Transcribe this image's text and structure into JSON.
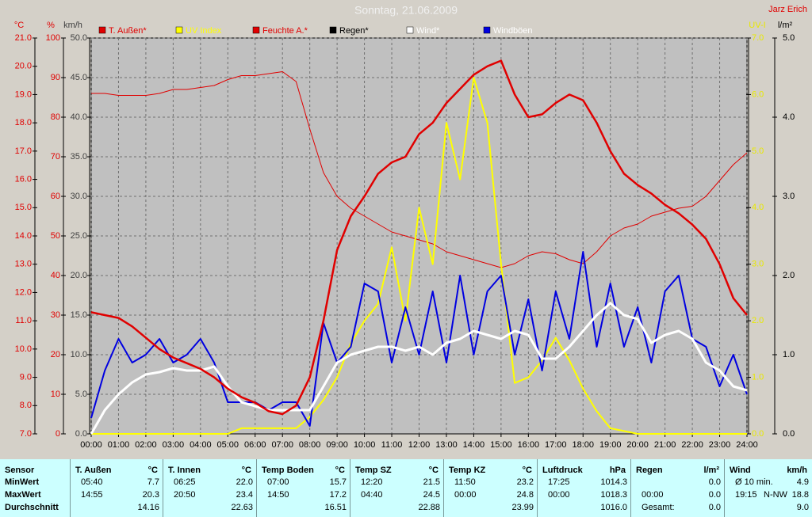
{
  "chart_data": {
    "type": "line",
    "title": "Sonntag, 21.06.2009",
    "author": "Jarz Erich",
    "grid": true,
    "x": [
      0,
      0.5,
      1,
      1.5,
      2,
      2.5,
      3,
      3.5,
      4,
      4.5,
      5,
      5.5,
      6,
      6.5,
      7,
      7.5,
      8,
      8.5,
      9,
      9.5,
      10,
      10.5,
      11,
      11.5,
      12,
      12.5,
      13,
      13.5,
      14,
      14.5,
      15,
      15.5,
      16,
      16.5,
      17,
      17.5,
      18,
      18.5,
      19,
      19.5,
      20,
      20.5,
      21,
      21.5,
      22,
      22.5,
      23,
      23.5,
      24
    ],
    "xlim": [
      0,
      24
    ],
    "xticks": [
      {
        "value": 0,
        "label": "00:00"
      },
      {
        "value": 1,
        "label": "01:00"
      },
      {
        "value": 2,
        "label": "02:00"
      },
      {
        "value": 3,
        "label": "03:00"
      },
      {
        "value": 4,
        "label": "04:00"
      },
      {
        "value": 5,
        "label": "05:00"
      },
      {
        "value": 6,
        "label": "06:00"
      },
      {
        "value": 7,
        "label": "07:00"
      },
      {
        "value": 8,
        "label": "08:00"
      },
      {
        "value": 9,
        "label": "09:00"
      },
      {
        "value": 10,
        "label": "10:00"
      },
      {
        "value": 11,
        "label": "11:00"
      },
      {
        "value": 12,
        "label": "12:00"
      },
      {
        "value": 13,
        "label": "13:00"
      },
      {
        "value": 14,
        "label": "14:00"
      },
      {
        "value": 15,
        "label": "15:00"
      },
      {
        "value": 16,
        "label": "16:00"
      },
      {
        "value": 17,
        "label": "17:00"
      },
      {
        "value": 18,
        "label": "18:00"
      },
      {
        "value": 19,
        "label": "19:00"
      },
      {
        "value": 20,
        "label": "20:00"
      },
      {
        "value": 21,
        "label": "21:00"
      },
      {
        "value": 22,
        "label": "22:00"
      },
      {
        "value": 23,
        "label": "23:00"
      },
      {
        "value": 24,
        "label": "24:00"
      }
    ],
    "y_axes": [
      {
        "label": "°C",
        "color": "#e00000",
        "ylim": [
          7,
          21
        ],
        "yticks": [
          {
            "value": 7,
            "label": "7.0"
          },
          {
            "value": 8,
            "label": "8.0"
          },
          {
            "value": 9,
            "label": "9.0"
          },
          {
            "value": 10,
            "label": "10.0"
          },
          {
            "value": 11,
            "label": "11.0"
          },
          {
            "value": 12,
            "label": "12.0"
          },
          {
            "value": 13,
            "label": "13.0"
          },
          {
            "value": 14,
            "label": "14.0"
          },
          {
            "value": 15,
            "label": "15.0"
          },
          {
            "value": 16,
            "label": "16.0"
          },
          {
            "value": 17,
            "label": "17.0"
          },
          {
            "value": 18,
            "label": "18.0"
          },
          {
            "value": 19,
            "label": "19.0"
          },
          {
            "value": 20,
            "label": "20.0"
          },
          {
            "value": 21,
            "label": "21.0"
          }
        ]
      },
      {
        "label": "%",
        "color": "#e00000",
        "ylim": [
          0,
          100
        ],
        "yticks": [
          0,
          10,
          20,
          30,
          40,
          50,
          60,
          70,
          80,
          90,
          100
        ]
      },
      {
        "label": "km/h",
        "color": "#404040",
        "ylim": [
          0,
          50
        ],
        "yticks": [
          {
            "value": 0,
            "label": "0.0"
          },
          {
            "value": 5,
            "label": "5.0"
          },
          {
            "value": 10,
            "label": "10.0"
          },
          {
            "value": 15,
            "label": "15.0"
          },
          {
            "value": 20,
            "label": "20.0"
          },
          {
            "value": 25,
            "label": "25.0"
          },
          {
            "value": 30,
            "label": "30.0"
          },
          {
            "value": 35,
            "label": "35.0"
          },
          {
            "value": 40,
            "label": "40.0"
          },
          {
            "value": 45,
            "label": "45.0"
          },
          {
            "value": 50,
            "label": "50.0"
          }
        ]
      },
      {
        "label": "UV-I",
        "color": "#e8e800",
        "ylim": [
          0,
          7
        ],
        "yticks": [
          {
            "value": 0,
            "label": "0.0"
          },
          {
            "value": 1,
            "label": "1.0"
          },
          {
            "value": 2,
            "label": "2.0"
          },
          {
            "value": 3,
            "label": "3.0"
          },
          {
            "value": 4,
            "label": "4.0"
          },
          {
            "value": 5,
            "label": "5.0"
          },
          {
            "value": 6,
            "label": "6.0"
          },
          {
            "value": 7,
            "label": "7.0"
          }
        ]
      },
      {
        "label": "l/m²",
        "color": "#000000",
        "ylim": [
          0,
          5
        ],
        "yticks": [
          {
            "value": 0,
            "label": "0.0"
          },
          {
            "value": 1,
            "label": "1.0"
          },
          {
            "value": 2,
            "label": "2.0"
          },
          {
            "value": 3,
            "label": "3.0"
          },
          {
            "value": 4,
            "label": "4.0"
          },
          {
            "value": 5,
            "label": "5.0"
          }
        ]
      }
    ],
    "series": [
      {
        "name": "T. Außen*",
        "color": "#e00000",
        "legend_color": "#e00000",
        "axis": 0,
        "width": 2.5,
        "values": [
          11.3,
          11.2,
          11.1,
          10.8,
          10.4,
          10.0,
          9.7,
          9.5,
          9.3,
          9.0,
          8.6,
          8.3,
          8.1,
          7.8,
          7.7,
          8.0,
          9.0,
          11.0,
          13.5,
          14.7,
          15.4,
          16.2,
          16.6,
          16.8,
          17.6,
          18.0,
          18.7,
          19.2,
          19.7,
          20.0,
          20.2,
          19.0,
          18.2,
          18.3,
          18.7,
          19.0,
          18.8,
          18.0,
          17.0,
          16.2,
          15.8,
          15.5,
          15.1,
          14.8,
          14.4,
          13.9,
          13.0,
          11.8,
          11.2
        ]
      },
      {
        "name": "UV Index",
        "color": "#ffff00",
        "legend_color": "#ffff00",
        "axis": 3,
        "width": 2,
        "values": [
          0,
          0,
          0,
          0,
          0,
          0,
          0,
          0,
          0,
          0,
          0,
          0.1,
          0.1,
          0.1,
          0.1,
          0.1,
          0.3,
          0.6,
          1.0,
          1.6,
          2.0,
          2.3,
          3.3,
          2.0,
          4.0,
          3.0,
          5.5,
          4.5,
          6.3,
          5.5,
          3.0,
          0.9,
          1.0,
          1.3,
          1.7,
          1.3,
          0.8,
          0.4,
          0.1,
          0.05,
          0,
          0,
          0,
          0,
          0,
          0,
          0,
          0,
          0
        ]
      },
      {
        "name": "Feuchte A.*",
        "color": "#e00000",
        "legend_color": "#e00000",
        "axis": 1,
        "width": 1,
        "values": [
          86,
          86,
          85.5,
          85.5,
          85.5,
          86,
          87,
          87,
          87.5,
          88,
          89.5,
          90.5,
          90.5,
          91,
          91.5,
          89,
          77,
          66,
          60,
          57,
          55,
          53,
          51,
          50,
          49,
          48,
          46,
          45,
          44,
          43,
          42,
          43,
          45,
          46,
          45.5,
          44,
          43,
          46,
          50,
          52,
          53,
          55,
          56,
          57,
          57.5,
          60,
          64,
          68,
          71
        ]
      },
      {
        "name": "Regen*",
        "color": "#000000",
        "legend_color": "#000000",
        "axis": 4,
        "width": 1,
        "values": [
          0,
          0,
          0,
          0,
          0,
          0,
          0,
          0,
          0,
          0,
          0,
          0,
          0,
          0,
          0,
          0,
          0,
          0,
          0,
          0,
          0,
          0,
          0,
          0,
          0,
          0,
          0,
          0,
          0,
          0,
          0,
          0,
          0,
          0,
          0,
          0,
          0,
          0,
          0,
          0,
          0,
          0,
          0,
          0,
          0,
          0,
          0,
          0,
          0
        ]
      },
      {
        "name": "Wind*",
        "color": "#ffffff",
        "legend_color": "#ffffff",
        "axis": 2,
        "width": 3,
        "values": [
          0,
          3,
          5,
          6.5,
          7.5,
          7.8,
          8.3,
          8,
          8,
          8.5,
          6,
          4,
          3.5,
          3,
          3,
          3,
          3,
          6,
          9,
          10,
          10.5,
          11,
          11,
          10.5,
          11,
          10,
          11.5,
          12,
          13,
          12.5,
          12,
          13,
          12.5,
          9.5,
          9.5,
          11,
          13,
          15,
          16.5,
          15,
          14.5,
          11.5,
          12.5,
          13,
          12,
          9,
          8,
          6,
          5.5
        ]
      },
      {
        "name": "Windböen",
        "color": "#0000e0",
        "legend_color": "#ffffff",
        "axis": 2,
        "width": 2,
        "values": [
          2,
          8,
          12,
          9,
          10,
          12,
          9,
          10,
          12,
          9,
          4,
          4,
          4,
          3,
          4,
          4,
          1,
          14,
          9,
          11,
          19,
          18,
          9,
          16,
          10,
          18,
          9,
          20,
          10,
          18,
          20,
          10,
          17,
          8,
          18,
          12,
          23,
          11,
          19,
          11,
          16,
          9,
          18,
          20,
          12,
          11,
          6,
          10,
          5
        ]
      }
    ]
  },
  "table": {
    "header_label": "Sensor",
    "columns": [
      {
        "name": "T. Außen",
        "unit": "°C"
      },
      {
        "name": "T. Innen",
        "unit": "°C"
      },
      {
        "name": "Temp Boden",
        "unit": "°C"
      },
      {
        "name": "Temp SZ",
        "unit": "°C"
      },
      {
        "name": "Temp KZ",
        "unit": "°C"
      },
      {
        "name": "Luftdruck",
        "unit": "hPa"
      },
      {
        "name": "Regen",
        "unit": "l/m²"
      },
      {
        "name": "Wind",
        "unit": "km/h"
      }
    ],
    "rows": [
      {
        "label": "MinWert",
        "cells": [
          {
            "time": "05:40",
            "value": "7.7"
          },
          {
            "time": "06:25",
            "value": "22.0"
          },
          {
            "time": "07:00",
            "value": "15.7"
          },
          {
            "time": "12:20",
            "value": "21.5"
          },
          {
            "time": "11:50",
            "value": "23.2"
          },
          {
            "time": "17:25",
            "value": "1014.3"
          },
          {
            "value": "0.0"
          },
          {
            "time": "Ø 10 min.",
            "value": "4.9"
          }
        ]
      },
      {
        "label": "MaxWert",
        "cells": [
          {
            "time": "14:55",
            "value": "20.3"
          },
          {
            "time": "20:50",
            "value": "23.4"
          },
          {
            "time": "14:50",
            "value": "17.2"
          },
          {
            "time": "04:40",
            "value": "24.5"
          },
          {
            "time": "00:00",
            "value": "24.8"
          },
          {
            "time": "00:00",
            "value": "1018.3"
          },
          {
            "time": "00:00",
            "value": "0.0"
          },
          {
            "time": "19:15",
            "dir": "N-NW",
            "value": "18.8"
          }
        ]
      },
      {
        "label": "Durchschnitt",
        "cells": [
          {
            "value": "14.16"
          },
          {
            "value": "22.63"
          },
          {
            "value": "16.51"
          },
          {
            "value": "22.88"
          },
          {
            "value": "23.99"
          },
          {
            "value": "1016.0"
          },
          {
            "time": "Gesamt:",
            "value": "0.0"
          },
          {
            "value": "9.0"
          }
        ]
      }
    ]
  }
}
